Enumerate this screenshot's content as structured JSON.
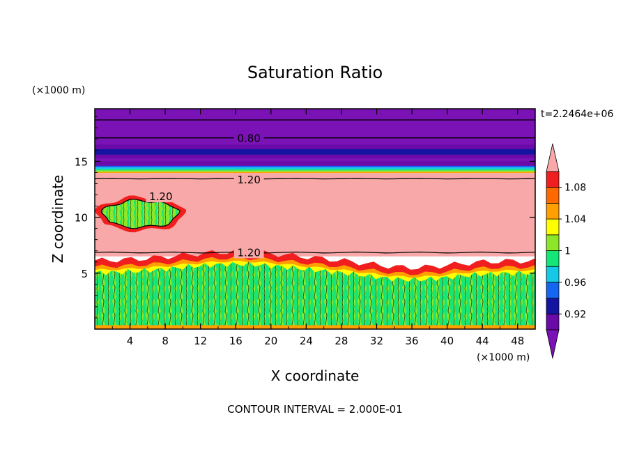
{
  "chart_data": {
    "type": "heatmap",
    "title": "Saturation Ratio",
    "xlabel": "X coordinate",
    "ylabel": "Z coordinate",
    "x_unit": "(×1000 m)",
    "y_unit": "(×1000 m)",
    "time_label": "t=2.2464e+06",
    "footer": "CONTOUR INTERVAL = 2.000E-01",
    "xlim": [
      0,
      50
    ],
    "ylim": [
      0,
      19.7
    ],
    "x_ticks": [
      4,
      8,
      12,
      16,
      20,
      24,
      28,
      32,
      36,
      40,
      44,
      48
    ],
    "y_ticks": [
      5,
      10,
      15
    ],
    "contour_labels": [
      {
        "text": "0.80",
        "x": 17.5,
        "y": 17.1
      },
      {
        "text": "1.20",
        "x": 17.5,
        "y": 13.4
      },
      {
        "text": "1.20",
        "x": 7.5,
        "y": 11.9
      },
      {
        "text": "1.20",
        "x": 17.5,
        "y": 6.9
      }
    ],
    "colorbar": {
      "levels": [
        0.92,
        0.96,
        1,
        1.04,
        1.08
      ],
      "tick_labels": [
        "0.92",
        "0.96",
        "1",
        "1.04",
        "1.08"
      ],
      "bins": [
        {
          "range": "< 0.90",
          "color": "#7a12b5"
        },
        {
          "range": "0.90–0.92",
          "color": "#6a0aa8"
        },
        {
          "range": "0.92–0.94",
          "color": "#1414a0"
        },
        {
          "range": "0.94–0.96",
          "color": "#1466f0"
        },
        {
          "range": "0.96–0.98",
          "color": "#14c8e6"
        },
        {
          "range": "0.98–1.00",
          "color": "#14e678"
        },
        {
          "range": "1.00–1.02",
          "color": "#8ee628"
        },
        {
          "range": "1.02–1.04",
          "color": "#ffff00"
        },
        {
          "range": "1.04–1.06",
          "color": "#ffa000"
        },
        {
          "range": "1.06–1.08",
          "color": "#ff6a00"
        },
        {
          "range": "1.08–1.10",
          "color": "#f01e1e"
        },
        {
          "range": "> 1.10",
          "color": "#f8a8a8"
        }
      ]
    },
    "layers": [
      {
        "name": "upper dry layer",
        "z_range": [
          14.5,
          19.7
        ],
        "value": "0.90"
      },
      {
        "name": "moist layer",
        "z_range": [
          6.5,
          14.0
        ],
        "value": "> 1.10"
      },
      {
        "name": "embedded cloud",
        "x_range": [
          0.5,
          10.5
        ],
        "z_range": [
          8.5,
          12.0
        ],
        "value": "1.00–1.02"
      },
      {
        "name": "boundary layer",
        "z_range": [
          0,
          5.5
        ],
        "value": "0.98–1.02"
      }
    ]
  }
}
